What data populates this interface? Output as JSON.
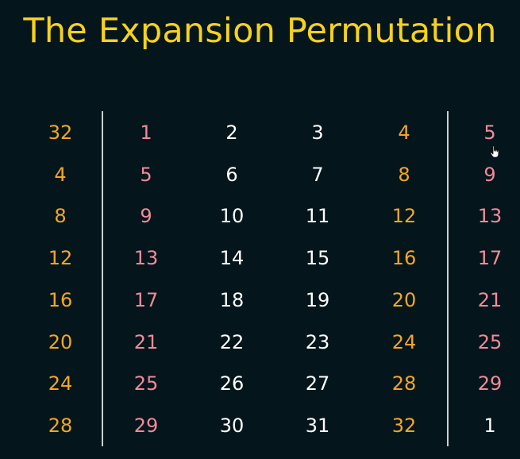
{
  "title": "The Expansion Permutation",
  "table": {
    "rows": [
      [
        "32",
        "1",
        "2",
        "3",
        "4",
        "5"
      ],
      [
        "4",
        "5",
        "6",
        "7",
        "8",
        "9"
      ],
      [
        "8",
        "9",
        "10",
        "11",
        "12",
        "13"
      ],
      [
        "12",
        "13",
        "14",
        "15",
        "16",
        "17"
      ],
      [
        "16",
        "17",
        "18",
        "19",
        "20",
        "21"
      ],
      [
        "20",
        "21",
        "22",
        "23",
        "24",
        "25"
      ],
      [
        "24",
        "25",
        "26",
        "27",
        "28",
        "29"
      ],
      [
        "28",
        "29",
        "30",
        "31",
        "32",
        "1"
      ]
    ],
    "column_colors": [
      "#f5a623",
      "#f28a9a",
      "#ffffff",
      "#ffffff",
      "#f5a623",
      "#f28a9a"
    ],
    "last_row_last_cell_color": "#ffffff"
  },
  "cursor_icon": "hand-pointer-icon"
}
